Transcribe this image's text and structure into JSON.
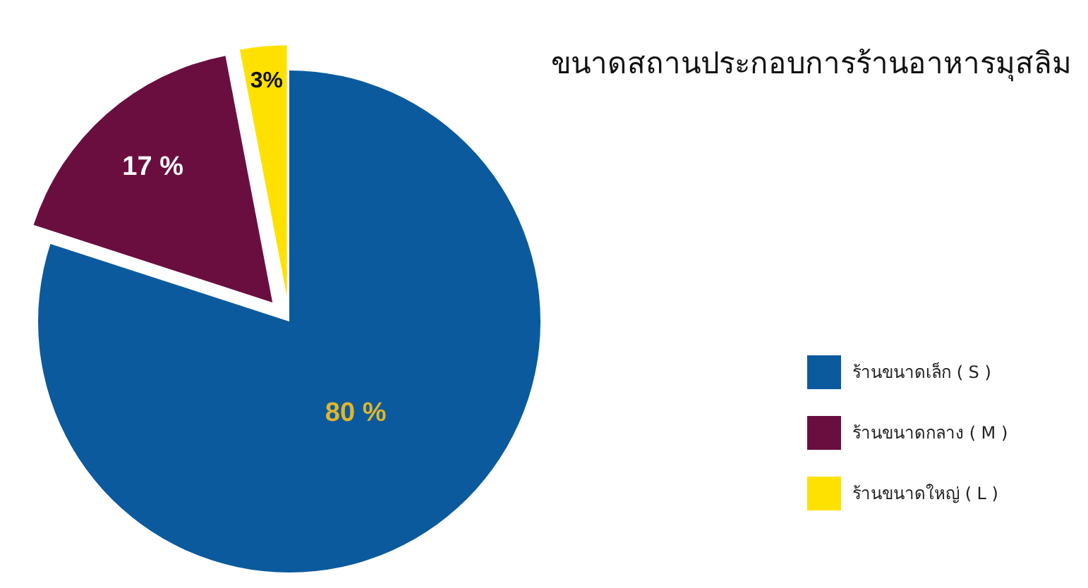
{
  "chart_data": {
    "type": "pie",
    "title": "ขนาดสถานประกอบการร้านอาหารมุสลิม",
    "categories": [
      "ร้านขนาดเล็ก ( S )",
      "ร้านขนาดกลาง ( M )",
      "ร้านขนาดใหญ่ ( L )"
    ],
    "values": [
      80,
      17,
      3
    ],
    "colors": [
      "#0b5a9e",
      "#6a0e3f",
      "#ffe100"
    ],
    "value_labels": [
      "80 %",
      "17 %",
      "3%"
    ],
    "legend": "right"
  }
}
